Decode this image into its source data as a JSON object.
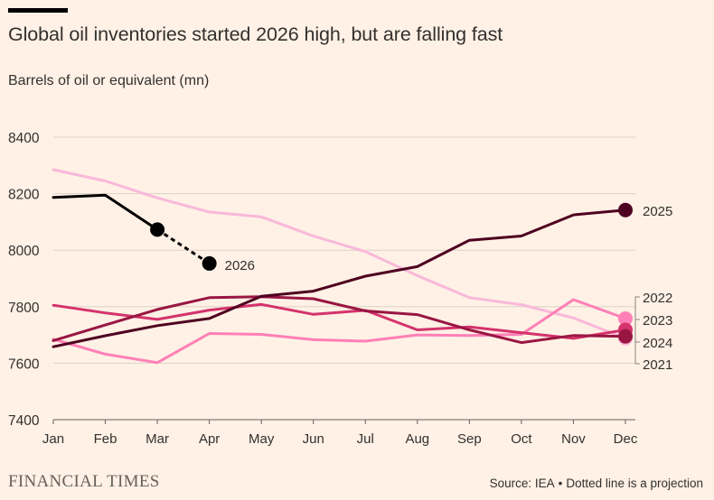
{
  "header": {
    "title": "Global oil inventories started 2026 high, but are falling fast",
    "subtitle": "Barrels of oil or equivalent (mn)"
  },
  "footer": {
    "logo_text": "FINANCIAL TIMES",
    "source_text": "Source: IEA",
    "note_text": "Dotted line is a projection",
    "separator": "•"
  },
  "chart_data": {
    "type": "line",
    "title": "Global oil inventories started 2026 high, but are falling fast",
    "ylabel": "Barrels of oil or equivalent (mn)",
    "xlabel": "",
    "categories": [
      "Jan",
      "Feb",
      "Mar",
      "Apr",
      "May",
      "Jun",
      "Jul",
      "Aug",
      "Sep",
      "Oct",
      "Nov",
      "Dec"
    ],
    "ylim": [
      7400,
      8400
    ],
    "yticks": [
      7400,
      7600,
      7800,
      8000,
      8200,
      8400
    ],
    "grid": true,
    "legend": "direct labels at line ends",
    "series": [
      {
        "name": "2021",
        "color": "#F9B8DA",
        "values": [
          8285,
          8245,
          8185,
          8135,
          8118,
          8050,
          7995,
          7910,
          7832,
          7807,
          7760,
          7688
        ]
      },
      {
        "name": "2022",
        "color": "#FF7FB7",
        "values": [
          7685,
          7632,
          7602,
          7705,
          7702,
          7683,
          7678,
          7700,
          7698,
          7702,
          7825,
          7758
        ]
      },
      {
        "name": "2023",
        "color": "#D4336C",
        "values": [
          7805,
          7778,
          7755,
          7788,
          7808,
          7773,
          7787,
          7718,
          7728,
          7708,
          7688,
          7718
        ]
      },
      {
        "name": "2024",
        "color": "#991643",
        "values": [
          7680,
          7735,
          7790,
          7832,
          7835,
          7828,
          7785,
          7772,
          7718,
          7673,
          7698,
          7695
        ]
      },
      {
        "name": "2025",
        "color": "#4E0020",
        "values": [
          7658,
          7697,
          7733,
          7758,
          7837,
          7855,
          7908,
          7942,
          8035,
          8050,
          8125,
          8142
        ]
      },
      {
        "name": "2026",
        "color": "#000000",
        "values": [
          8187,
          8195,
          8073,
          7953,
          null,
          null,
          null,
          null,
          null,
          null,
          null,
          null
        ],
        "projection_from_index": 2
      }
    ]
  }
}
